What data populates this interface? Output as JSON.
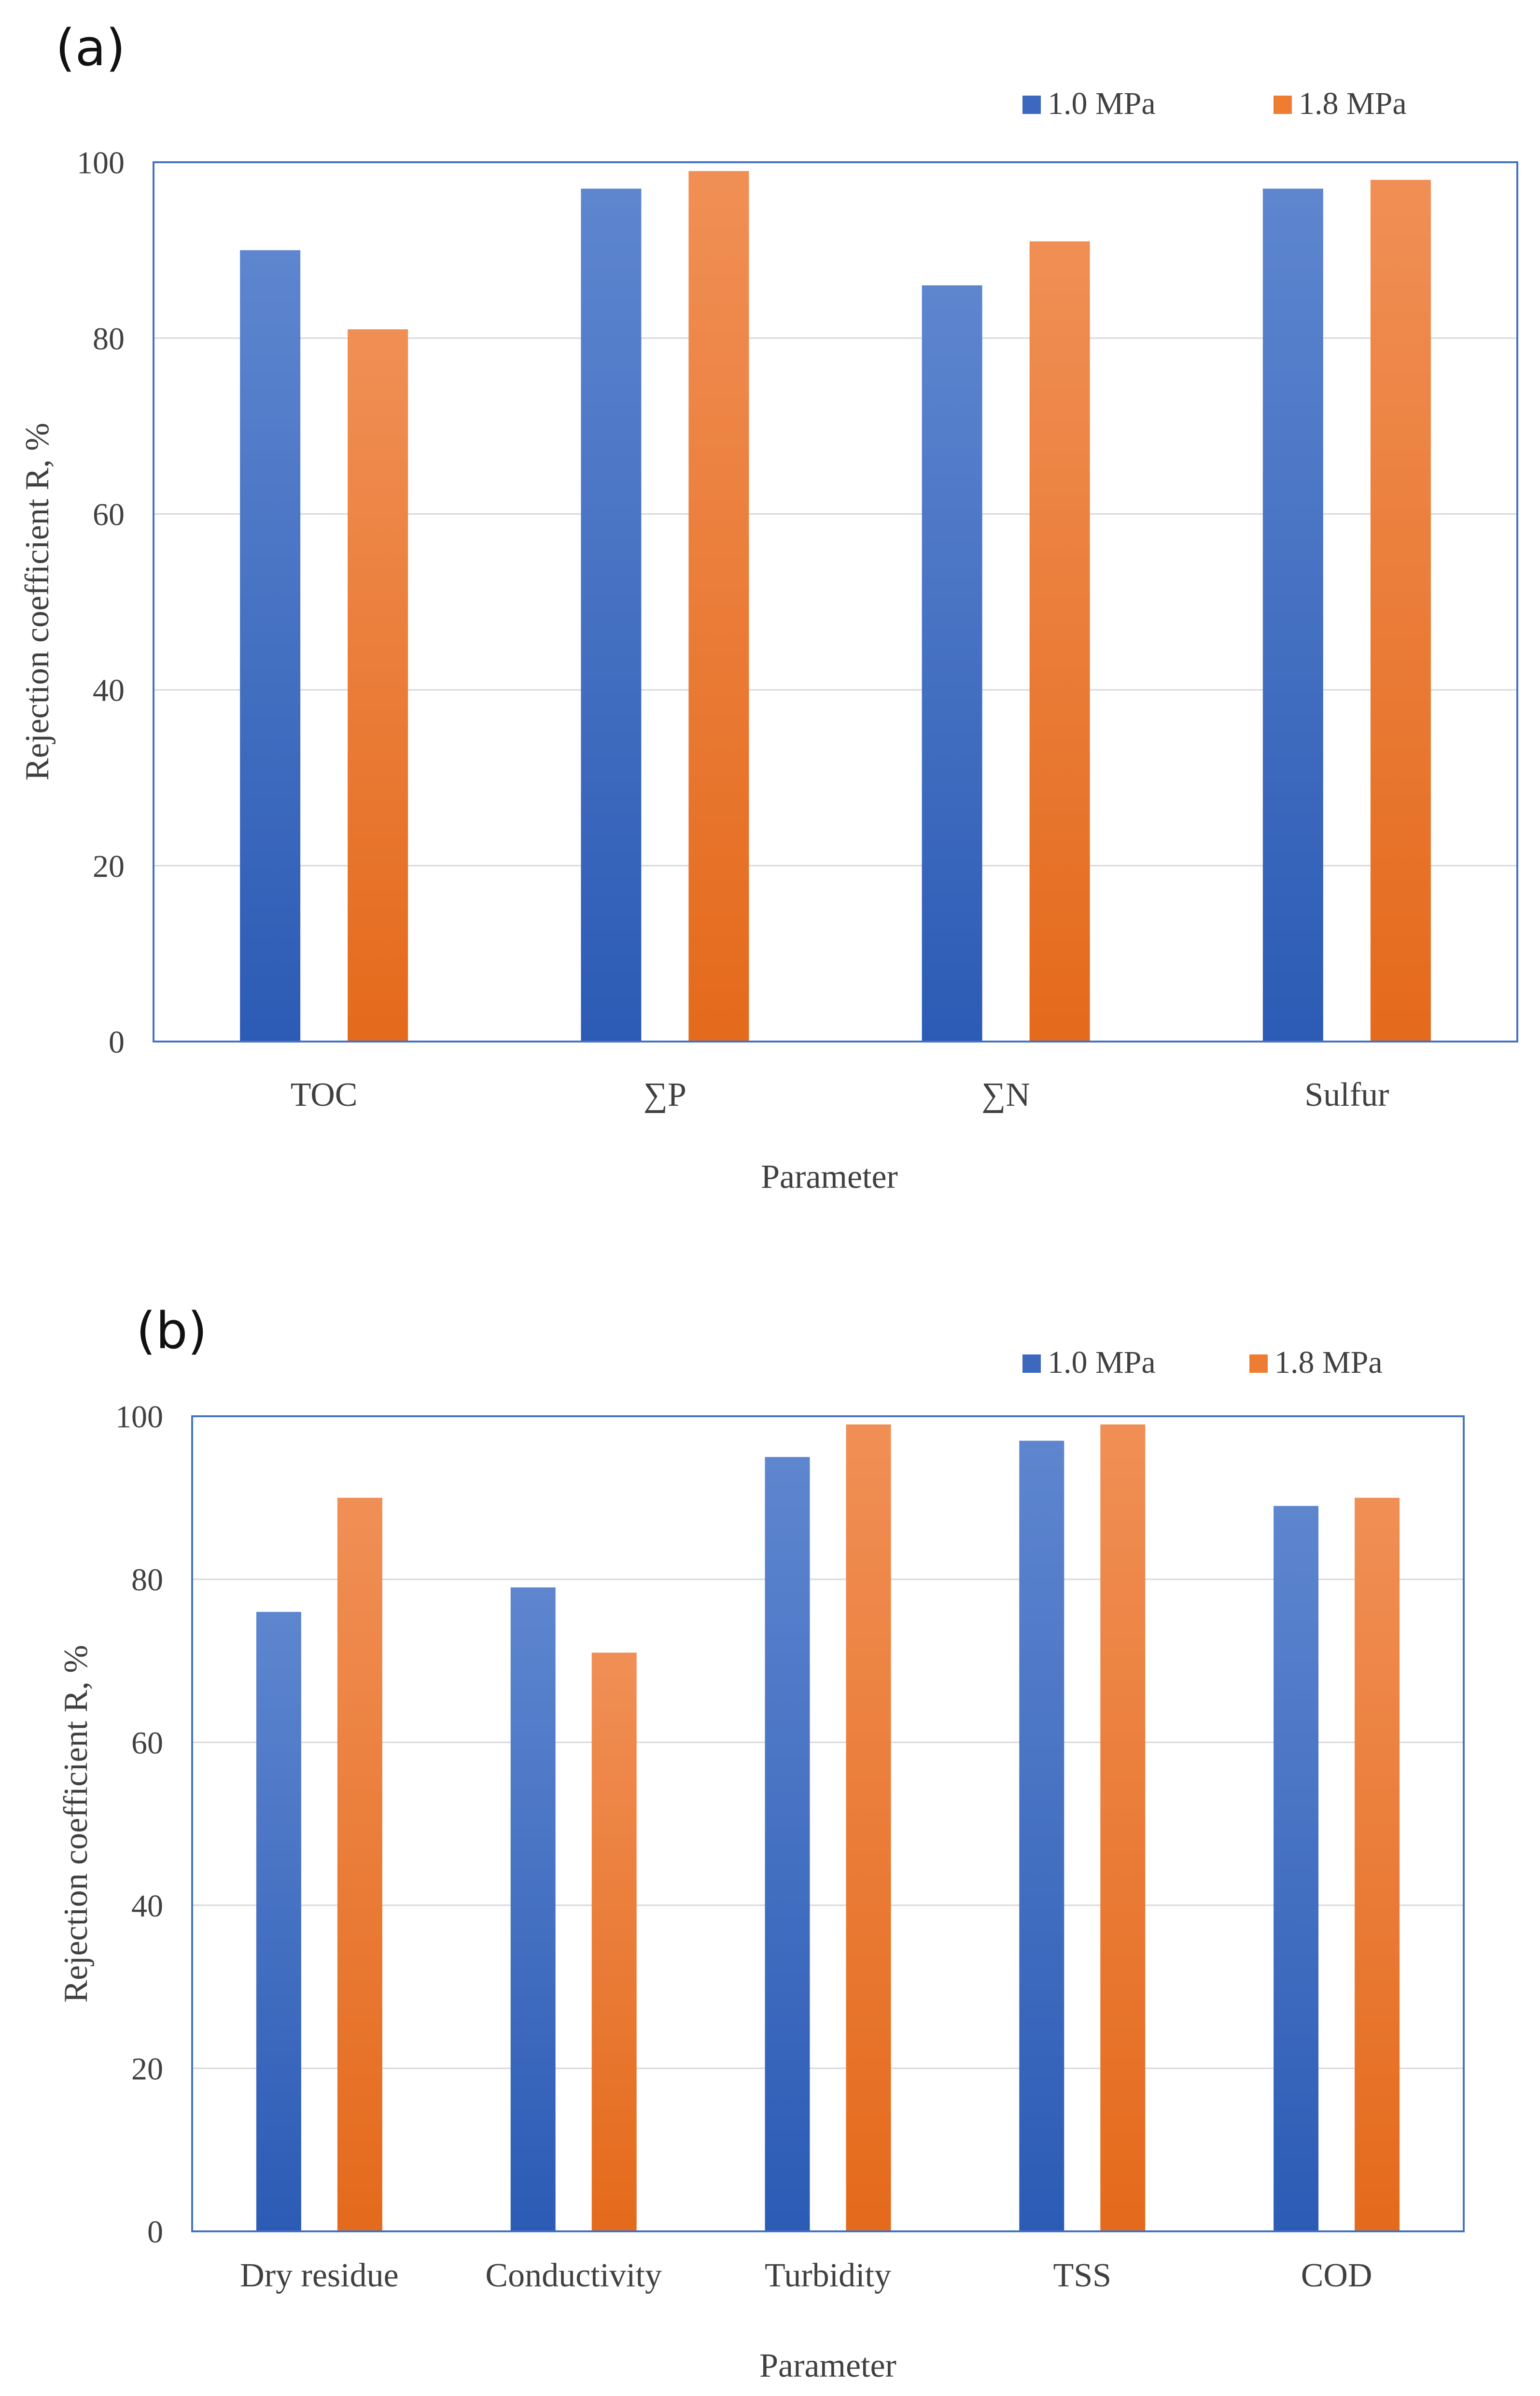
{
  "chart_data": [
    {
      "type": "bar",
      "panel_label": "(a)",
      "categories": [
        "TOC",
        "∑P",
        "∑N",
        "Sulfur"
      ],
      "series": [
        {
          "name": "1.0 MPa",
          "values": [
            90,
            97,
            86,
            97
          ]
        },
        {
          "name": "1.8 MPa",
          "values": [
            81,
            99,
            91,
            98
          ]
        }
      ],
      "xlabel": "Parameter",
      "ylabel": "Rejection coefficient R, %",
      "ylim": [
        0,
        100
      ],
      "yticks": [
        "0",
        "20",
        "40",
        "60",
        "80",
        "100"
      ],
      "grid": true,
      "legend": "top-right"
    },
    {
      "type": "bar",
      "panel_label": "(b)",
      "categories": [
        "Dry residue",
        "Conductivity",
        "Turbidity",
        "TSS",
        "COD"
      ],
      "series": [
        {
          "name": "1.0 MPa",
          "values": [
            76,
            79,
            95,
            97,
            89
          ]
        },
        {
          "name": "1.8 MPa",
          "values": [
            90,
            71,
            99,
            99,
            90
          ]
        }
      ],
      "xlabel": "Parameter",
      "ylabel": "Rejection coefficient R, %",
      "ylim": [
        0,
        100
      ],
      "yticks": [
        "0",
        "20",
        "40",
        "60",
        "80",
        "100"
      ],
      "grid": true,
      "legend": "top-right"
    }
  ],
  "colors": {
    "series_1": {
      "light": "#5E86CF",
      "dark": "#2C5BB5",
      "legend": "#3C68C0"
    },
    "series_2": {
      "light": "#F08F55",
      "dark": "#E46A1C",
      "legend": "#EE7D32"
    },
    "plot_border": "#4472C4",
    "grid": "#D9D9D9",
    "text": "#404040"
  }
}
